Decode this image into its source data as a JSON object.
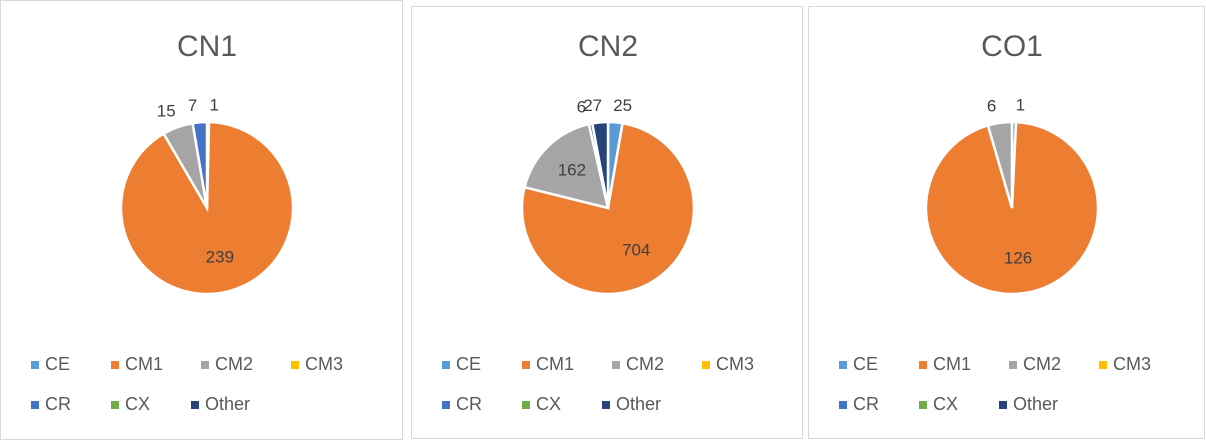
{
  "chart_data": [
    {
      "type": "pie",
      "title": "CN1",
      "categories": [
        "CE",
        "CM1",
        "CM2",
        "CM3",
        "CR",
        "CX",
        "Other"
      ],
      "values": [
        1,
        239,
        15,
        null,
        7,
        null,
        null
      ],
      "colors": [
        "#5b9bd5",
        "#ed7d31",
        "#a5a5a5",
        "#ffc000",
        "#4472c4",
        "#70ad47",
        "#264478"
      ]
    },
    {
      "type": "pie",
      "title": "CN2",
      "categories": [
        "CE",
        "CM1",
        "CM2",
        "CM3",
        "CR",
        "CX",
        "Other"
      ],
      "values": [
        25,
        704,
        162,
        null,
        6,
        null,
        27
      ],
      "colors": [
        "#5b9bd5",
        "#ed7d31",
        "#a5a5a5",
        "#ffc000",
        "#4472c4",
        "#70ad47",
        "#264478"
      ]
    },
    {
      "type": "pie",
      "title": "CO1",
      "categories": [
        "CE",
        "CM1",
        "CM2",
        "CM3",
        "CR",
        "CX",
        "Other"
      ],
      "values": [
        1,
        126,
        6,
        null,
        null,
        null,
        null
      ],
      "colors": [
        "#5b9bd5",
        "#ed7d31",
        "#a5a5a5",
        "#ffc000",
        "#4472c4",
        "#70ad47",
        "#264478"
      ]
    }
  ]
}
